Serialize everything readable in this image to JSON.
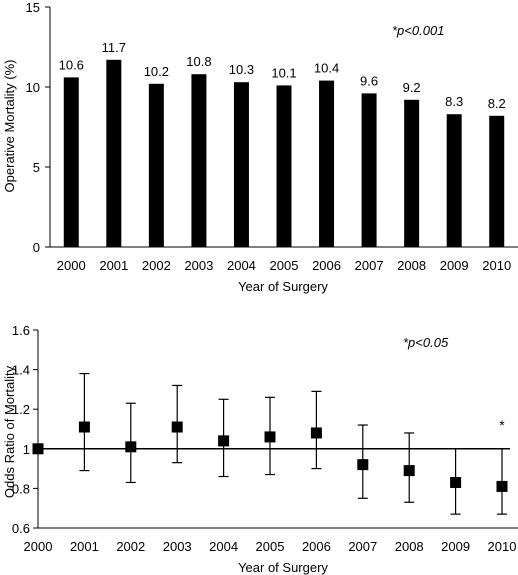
{
  "chart_data": [
    {
      "type": "bar",
      "categories": [
        "2000",
        "2001",
        "2002",
        "2003",
        "2004",
        "2005",
        "2006",
        "2007",
        "2008",
        "2009",
        "2010"
      ],
      "values": [
        10.6,
        11.7,
        10.2,
        10.8,
        10.3,
        10.1,
        10.4,
        9.6,
        9.2,
        8.3,
        8.2
      ],
      "data_labels": [
        "10.6",
        "11.7",
        "10.2",
        "10.8",
        "10.3",
        "10.1",
        "10.4",
        "9.6",
        "9.2",
        "8.3",
        "8.2"
      ],
      "xlabel": "Year of Surgery",
      "ylabel": "Operative Mortality (%)",
      "ylim": [
        0,
        15
      ],
      "yticks": [
        "0",
        "5",
        "10",
        "15"
      ],
      "annotation": "*p<0.001",
      "bar_color": "#000000",
      "grid": false
    },
    {
      "type": "scatter",
      "categories": [
        "2000",
        "2001",
        "2002",
        "2003",
        "2004",
        "2005",
        "2006",
        "2007",
        "2008",
        "2009",
        "2010"
      ],
      "values": [
        1.0,
        1.11,
        1.01,
        1.11,
        1.04,
        1.06,
        1.08,
        0.92,
        0.89,
        0.83,
        0.81
      ],
      "error_low": [
        1.0,
        0.89,
        0.83,
        0.93,
        0.86,
        0.87,
        0.9,
        0.75,
        0.73,
        0.67,
        0.67
      ],
      "error_high": [
        1.0,
        1.38,
        1.23,
        1.32,
        1.25,
        1.26,
        1.29,
        1.12,
        1.08,
        1.0,
        1.0
      ],
      "reference_line": 1.0,
      "xlabel": "Year of Surgery",
      "ylabel": "Odds Ratio of Mortality",
      "ylim": [
        0.6,
        1.6
      ],
      "yticks": [
        "0.6",
        "0.8",
        "1",
        "1.2",
        "1.4",
        "1.6"
      ],
      "annotation": "*p<0.05",
      "significance_marker": "*",
      "significance_category": "2010",
      "marker_color": "#000000",
      "grid": false
    }
  ]
}
